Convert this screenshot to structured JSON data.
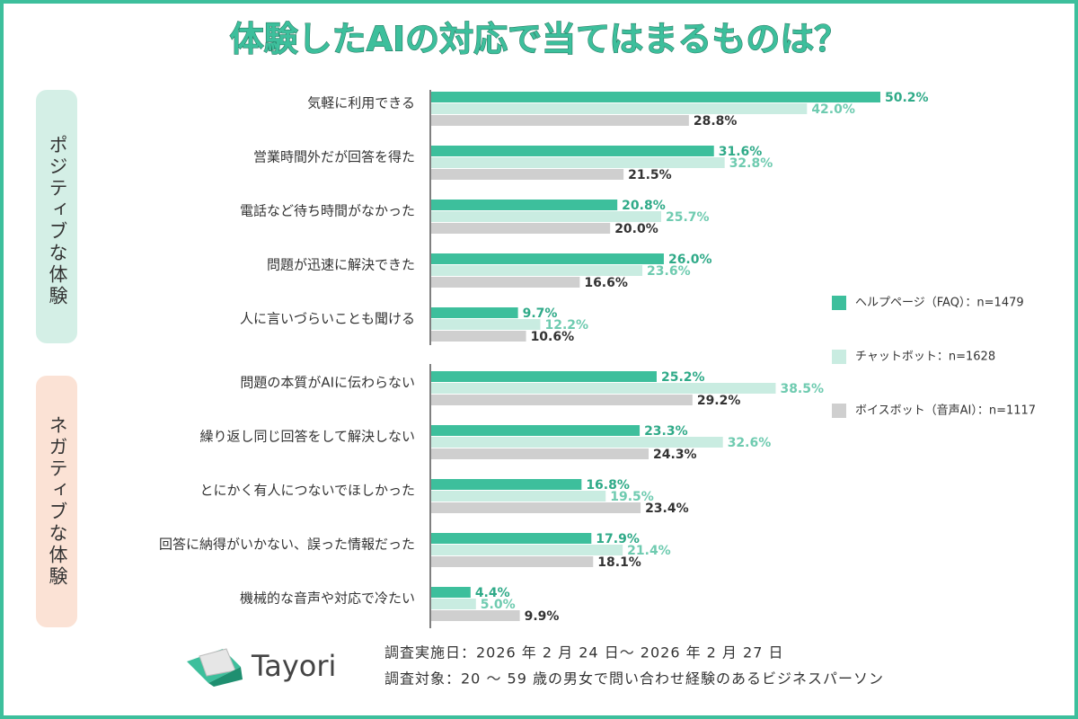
{
  "chart_data": {
    "type": "bar",
    "orientation": "horizontal",
    "title": "体験したAIの対応で当てはまるものは？",
    "group_labels": [
      "ポジティブな体験",
      "ネガティブな体験"
    ],
    "categories": [
      "気軽に利用できる",
      "営業時間外だが回答を得た",
      "電話など待ち時間がなかった",
      "問題が迅速に解決できた",
      "人に言いづらいことも聞ける",
      "問題の本質がAIに伝わらない",
      "繰り返し同じ回答をして解決しない",
      "とにかく有人につないでほしかった",
      "回答に納得がいかない、誤った情報だった",
      "機械的な音声や対応で冷たい"
    ],
    "series": [
      {
        "name": "ヘルプページ（FAQ）：n=1479",
        "color": "#3dbf9c",
        "label_color": "#2faa88",
        "values": [
          50.2,
          31.6,
          20.8,
          26.0,
          9.7,
          25.2,
          23.3,
          16.8,
          17.9,
          4.4
        ],
        "value_labels": [
          "50.2%",
          "31.6%",
          "20.8%",
          "26.0%",
          "9.7%",
          "25.2%",
          "23.3%",
          "16.8%",
          "17.9%",
          "4.4%"
        ]
      },
      {
        "name": "チャットボット：n=1628",
        "color": "#c9ece1",
        "label_color": "#6fcbb0",
        "values": [
          42.0,
          32.8,
          25.7,
          23.6,
          12.2,
          38.5,
          32.6,
          19.5,
          21.4,
          5.0
        ],
        "value_labels": [
          "42.0%",
          "32.8%",
          "25.7%",
          "23.6%",
          "12.2%",
          "38.5%",
          "32.6%",
          "19.5%",
          "21.4%",
          "5.0%"
        ]
      },
      {
        "name": "ボイスボット（音声AI）：n=1117",
        "color": "#cfcfcf",
        "label_color": "#333333",
        "values": [
          28.8,
          21.5,
          20.0,
          16.6,
          10.6,
          29.2,
          24.3,
          23.4,
          18.1,
          9.9
        ],
        "value_labels": [
          "28.8%",
          "21.5%",
          "20.0%",
          "16.6%",
          "10.6%",
          "29.2%",
          "24.3%",
          "23.4%",
          "18.1%",
          "9.9%"
        ]
      }
    ],
    "footer": [
      "調査実施日：2026 年 2 月 24 日〜 2026 年 2 月 27 日",
      "調査対象：20 〜 59 歳の男女で問い合わせ経験のあるビジネスパーソン"
    ],
    "logo_text": "Tayori"
  }
}
